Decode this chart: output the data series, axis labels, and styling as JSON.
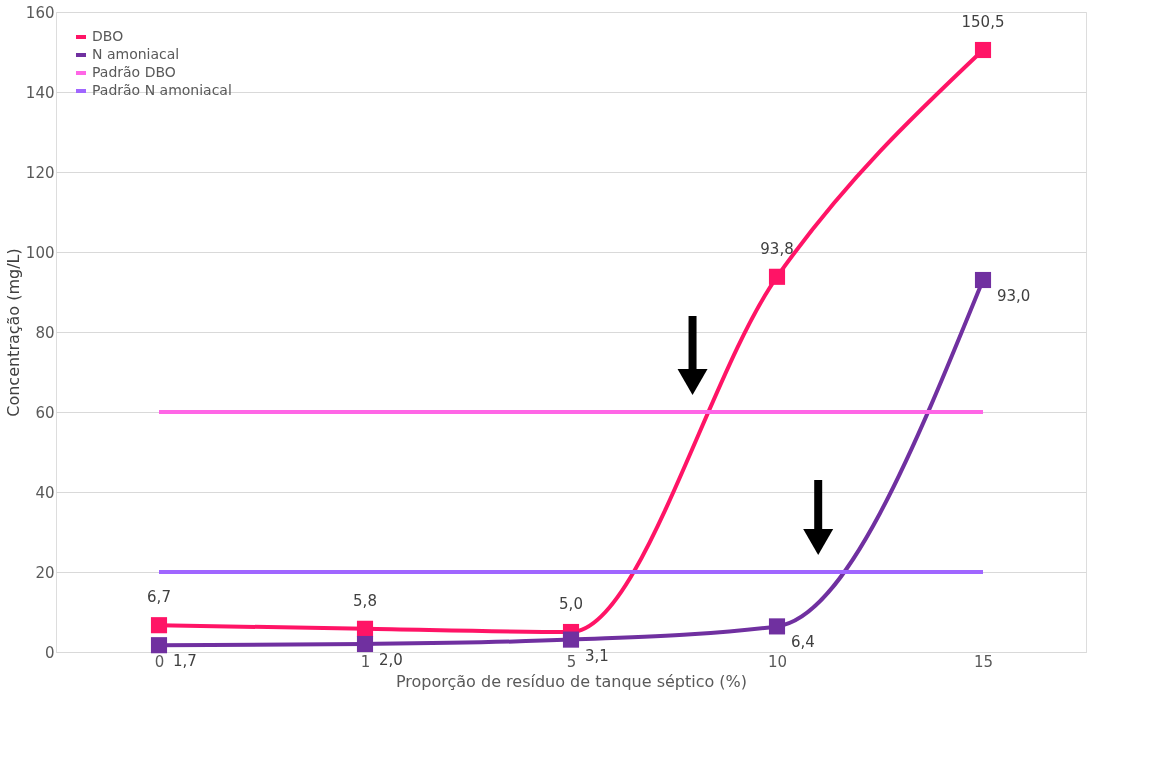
{
  "chart_data": {
    "type": "line",
    "xlabel": "Proporção de resíduo de tanque séptico (%)",
    "ylabel": "Concentração (mg/L)",
    "categories": [
      "0",
      "1",
      "5",
      "10",
      "15"
    ],
    "series": [
      {
        "name": "DBO",
        "color": "#ff1466",
        "values": [
          6.7,
          5.8,
          5.0,
          93.8,
          150.5
        ],
        "marker": "square",
        "value_labels": [
          "6,7",
          "5,8",
          "5,0",
          "93,8",
          "150,5"
        ]
      },
      {
        "name": "N amoniacal",
        "color": "#7030a0",
        "values": [
          1.7,
          2.0,
          3.1,
          6.4,
          93.0
        ],
        "marker": "square",
        "value_labels": [
          "1,7",
          "2,0",
          "3,1",
          "6,4",
          "93,0"
        ]
      },
      {
        "name": "Padrão DBO",
        "color": "#ff66e6",
        "values": [
          60,
          60,
          60,
          60,
          60
        ],
        "marker": "none"
      },
      {
        "name": "Padrão N amoniacal",
        "color": "#a066ff",
        "values": [
          20,
          20,
          20,
          20,
          20
        ],
        "marker": "none"
      }
    ],
    "ylim": [
      0,
      160
    ],
    "yticks": [
      0,
      20,
      40,
      60,
      80,
      100,
      120,
      140,
      160
    ],
    "grid": "y",
    "legend": "top left"
  }
}
